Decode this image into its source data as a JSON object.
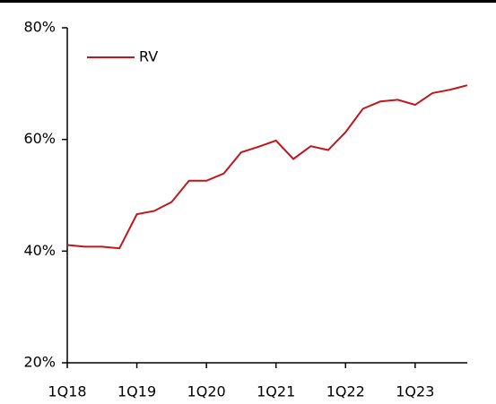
{
  "chart_data": {
    "type": "line",
    "categories": [
      "1Q18",
      null,
      null,
      null,
      "1Q19",
      null,
      null,
      null,
      "1Q20",
      null,
      null,
      null,
      "1Q21",
      null,
      null,
      null,
      "1Q22",
      null,
      null,
      null,
      "1Q23",
      null,
      null,
      null
    ],
    "series": [
      {
        "name": "RV",
        "color": "#c0161c",
        "values": [
          41.1,
          40.8,
          40.8,
          40.5,
          46.6,
          47.2,
          48.8,
          52.6,
          52.6,
          53.9,
          57.7,
          58.7,
          59.8,
          56.5,
          58.8,
          58.1,
          61.3,
          65.5,
          66.8,
          67.1,
          66.2,
          68.3,
          68.9,
          69.7
        ]
      }
    ],
    "ylim": [
      20,
      80
    ],
    "yticks": [
      {
        "value": 20,
        "label": "20%"
      },
      {
        "value": 40,
        "label": "40%"
      },
      {
        "value": 60,
        "label": "60%"
      },
      {
        "value": 80,
        "label": "80%"
      }
    ],
    "legend": "upper-left"
  }
}
